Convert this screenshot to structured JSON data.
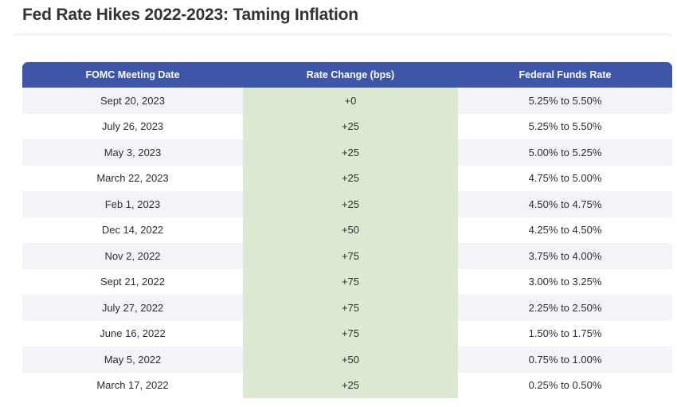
{
  "page": {
    "title": "Fed Rate Hikes 2022-2023: Taming Inflation"
  },
  "chart_data": {
    "type": "table",
    "title": "Fed Rate Hikes 2022-2023: Taming Inflation",
    "columns": [
      "FOMC Meeting Date",
      "Rate Change (bps)",
      "Federal Funds Rate"
    ],
    "rows": [
      {
        "date": "Sept 20, 2023",
        "change": "+0",
        "rate": "5.25% to 5.50%"
      },
      {
        "date": "July 26, 2023",
        "change": "+25",
        "rate": "5.25% to 5.50%"
      },
      {
        "date": "May 3, 2023",
        "change": "+25",
        "rate": "5.00% to 5.25%"
      },
      {
        "date": "March 22, 2023",
        "change": "+25",
        "rate": "4.75% to 5.00%"
      },
      {
        "date": "Feb 1, 2023",
        "change": "+25",
        "rate": "4.50% to 4.75%"
      },
      {
        "date": "Dec 14, 2022",
        "change": "+50",
        "rate": "4.25% to 4.50%"
      },
      {
        "date": "Nov 2, 2022",
        "change": "+75",
        "rate": "3.75% to 4.00%"
      },
      {
        "date": "Sept 21, 2022",
        "change": "+75",
        "rate": "3.00% to 3.25%"
      },
      {
        "date": "July 27, 2022",
        "change": "+75",
        "rate": "2.25% to 2.50%"
      },
      {
        "date": "June 16, 2022",
        "change": "+75",
        "rate": "1.50% to 1.75%"
      },
      {
        "date": "May 5, 2022",
        "change": "+50",
        "rate": "0.75% to 1.00%"
      },
      {
        "date": "March 17, 2022",
        "change": "+25",
        "rate": "0.25% to 0.50%"
      }
    ],
    "layout": {
      "highlighted_column": "Rate Change (bps)",
      "row_striping": "alternating, first data row shaded"
    }
  },
  "colors": {
    "header_bg": "#3E56A7",
    "header_text": "#FFFFFF",
    "change_column_bg": "#DCE8D2",
    "row_stripe_bg": "#F3F4FA",
    "body_text": "#2E2E2E",
    "title_text": "#333333",
    "divider": "#E7E7E7"
  }
}
